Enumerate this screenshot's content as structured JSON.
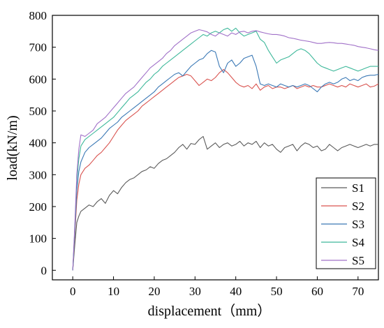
{
  "chart_data": {
    "type": "line",
    "xlabel": "displacement（mm）",
    "ylabel": "load(kN/m)",
    "xlim": [
      -5,
      75
    ],
    "ylim": [
      -30,
      800
    ],
    "xticks": [
      0,
      10,
      20,
      30,
      40,
      50,
      60,
      70
    ],
    "yticks": [
      0,
      100,
      200,
      300,
      400,
      500,
      600,
      700,
      800
    ],
    "grid": false,
    "legend_position": "bottom-right",
    "series": [
      {
        "name": "S1",
        "color": "#5a5a5a",
        "x": [
          0,
          0.5,
          1,
          1.5,
          2,
          3,
          4,
          5,
          6,
          7,
          8,
          9,
          10,
          11,
          12,
          13,
          14,
          15,
          16,
          17,
          18,
          19,
          20,
          21,
          22,
          23,
          24,
          25,
          26,
          27,
          28,
          29,
          30,
          31,
          32,
          33,
          34,
          35,
          36,
          37,
          38,
          39,
          40,
          41,
          42,
          43,
          44,
          45,
          46,
          47,
          48,
          49,
          50,
          51,
          52,
          53,
          54,
          55,
          56,
          57,
          58,
          59,
          60,
          61,
          62,
          63,
          64,
          65,
          66,
          67,
          68,
          69,
          70,
          71,
          72,
          73,
          74,
          75
        ],
        "y": [
          0,
          80,
          150,
          170,
          185,
          195,
          205,
          200,
          215,
          225,
          210,
          235,
          250,
          240,
          260,
          275,
          285,
          290,
          300,
          310,
          315,
          325,
          320,
          335,
          345,
          350,
          360,
          370,
          385,
          395,
          380,
          398,
          395,
          410,
          420,
          380,
          390,
          400,
          385,
          395,
          400,
          390,
          395,
          405,
          390,
          400,
          395,
          405,
          385,
          400,
          390,
          395,
          380,
          370,
          385,
          390,
          395,
          375,
          390,
          400,
          395,
          385,
          390,
          375,
          380,
          395,
          385,
          375,
          385,
          390,
          395,
          390,
          385,
          390,
          395,
          390,
          395,
          395
        ]
      },
      {
        "name": "S2",
        "color": "#d9534f",
        "x": [
          0,
          0.5,
          1,
          1.5,
          2,
          3,
          4,
          5,
          6,
          7,
          8,
          9,
          10,
          11,
          12,
          13,
          14,
          15,
          16,
          17,
          18,
          19,
          20,
          21,
          22,
          23,
          24,
          25,
          26,
          27,
          28,
          29,
          30,
          31,
          32,
          33,
          34,
          35,
          36,
          37,
          38,
          39,
          40,
          41,
          42,
          43,
          44,
          45,
          46,
          47,
          48,
          49,
          50,
          51,
          52,
          53,
          54,
          55,
          56,
          57,
          58,
          59,
          60,
          61,
          62,
          63,
          64,
          65,
          66,
          67,
          68,
          69,
          70,
          71,
          72,
          73,
          74,
          75
        ],
        "y": [
          0,
          110,
          220,
          270,
          300,
          320,
          330,
          345,
          360,
          370,
          385,
          400,
          420,
          440,
          455,
          470,
          480,
          490,
          500,
          515,
          525,
          535,
          545,
          555,
          565,
          575,
          585,
          595,
          605,
          610,
          615,
          610,
          595,
          580,
          590,
          600,
          595,
          605,
          620,
          630,
          620,
          605,
          590,
          580,
          575,
          580,
          570,
          585,
          565,
          575,
          580,
          570,
          575,
          575,
          570,
          575,
          580,
          570,
          575,
          580,
          575,
          580,
          575,
          575,
          580,
          585,
          580,
          575,
          580,
          575,
          585,
          580,
          575,
          580,
          585,
          575,
          578,
          585
        ]
      },
      {
        "name": "S3",
        "color": "#3a78b5",
        "x": [
          0,
          0.5,
          1,
          1.5,
          2,
          3,
          4,
          5,
          6,
          7,
          8,
          9,
          10,
          11,
          12,
          13,
          14,
          15,
          16,
          17,
          18,
          19,
          20,
          21,
          22,
          23,
          24,
          25,
          26,
          27,
          28,
          29,
          30,
          31,
          32,
          33,
          34,
          35,
          36,
          37,
          38,
          39,
          40,
          41,
          42,
          43,
          44,
          45,
          46,
          47,
          48,
          49,
          50,
          51,
          52,
          53,
          54,
          55,
          56,
          57,
          58,
          59,
          60,
          61,
          62,
          63,
          64,
          65,
          66,
          67,
          68,
          69,
          70,
          71,
          72,
          73,
          74,
          75
        ],
        "y": [
          0,
          120,
          250,
          310,
          340,
          370,
          385,
          395,
          405,
          415,
          430,
          445,
          455,
          465,
          480,
          490,
          500,
          510,
          520,
          530,
          540,
          550,
          560,
          575,
          585,
          595,
          605,
          615,
          620,
          610,
          625,
          640,
          650,
          660,
          665,
          680,
          690,
          685,
          640,
          620,
          650,
          660,
          640,
          650,
          665,
          670,
          675,
          640,
          585,
          580,
          585,
          580,
          575,
          585,
          580,
          575,
          580,
          575,
          580,
          585,
          580,
          570,
          560,
          575,
          585,
          590,
          585,
          590,
          600,
          605,
          595,
          600,
          595,
          605,
          610,
          612,
          612,
          615
        ]
      },
      {
        "name": "S4",
        "color": "#3db89a",
        "x": [
          0,
          0.5,
          1,
          1.5,
          2,
          3,
          4,
          5,
          6,
          7,
          8,
          9,
          10,
          11,
          12,
          13,
          14,
          15,
          16,
          17,
          18,
          19,
          20,
          21,
          22,
          23,
          24,
          25,
          26,
          27,
          28,
          29,
          30,
          31,
          32,
          33,
          34,
          35,
          36,
          37,
          38,
          39,
          40,
          41,
          42,
          43,
          44,
          45,
          46,
          47,
          48,
          49,
          50,
          51,
          52,
          53,
          54,
          55,
          56,
          57,
          58,
          59,
          60,
          61,
          62,
          63,
          64,
          65,
          66,
          67,
          68,
          69,
          70,
          71,
          72,
          73,
          74,
          75
        ],
        "y": [
          0,
          130,
          280,
          350,
          390,
          410,
          420,
          430,
          440,
          450,
          460,
          470,
          480,
          495,
          510,
          525,
          540,
          550,
          560,
          575,
          590,
          600,
          615,
          625,
          640,
          650,
          660,
          670,
          680,
          690,
          700,
          710,
          720,
          730,
          740,
          735,
          745,
          750,
          745,
          755,
          760,
          750,
          760,
          745,
          735,
          740,
          745,
          750,
          725,
          715,
          690,
          670,
          650,
          660,
          665,
          670,
          680,
          690,
          695,
          690,
          680,
          665,
          650,
          640,
          635,
          630,
          625,
          630,
          635,
          640,
          635,
          630,
          625,
          630,
          635,
          640,
          640,
          640
        ]
      },
      {
        "name": "S5",
        "color": "#a070c8",
        "x": [
          0,
          0.5,
          1,
          1.5,
          2,
          3,
          4,
          5,
          6,
          7,
          8,
          9,
          10,
          11,
          12,
          13,
          14,
          15,
          16,
          17,
          18,
          19,
          20,
          21,
          22,
          23,
          24,
          25,
          26,
          27,
          28,
          29,
          30,
          31,
          32,
          33,
          34,
          35,
          36,
          37,
          38,
          39,
          40,
          41,
          42,
          43,
          44,
          45,
          46,
          47,
          48,
          49,
          50,
          51,
          52,
          53,
          54,
          55,
          56,
          57,
          58,
          59,
          60,
          61,
          62,
          63,
          64,
          65,
          66,
          67,
          68,
          69,
          70,
          71,
          72,
          73,
          74,
          75
        ],
        "y": [
          0,
          140,
          300,
          380,
          425,
          420,
          430,
          440,
          460,
          470,
          480,
          495,
          510,
          525,
          540,
          555,
          565,
          575,
          590,
          605,
          620,
          635,
          645,
          655,
          665,
          680,
          690,
          705,
          715,
          725,
          735,
          745,
          750,
          755,
          752,
          748,
          740,
          735,
          745,
          740,
          735,
          745,
          740,
          748,
          750,
          745,
          750,
          752,
          748,
          745,
          742,
          740,
          740,
          738,
          735,
          730,
          728,
          725,
          722,
          720,
          718,
          715,
          712,
          712,
          714,
          715,
          714,
          712,
          712,
          710,
          708,
          706,
          702,
          700,
          698,
          695,
          692,
          690
        ]
      }
    ]
  }
}
